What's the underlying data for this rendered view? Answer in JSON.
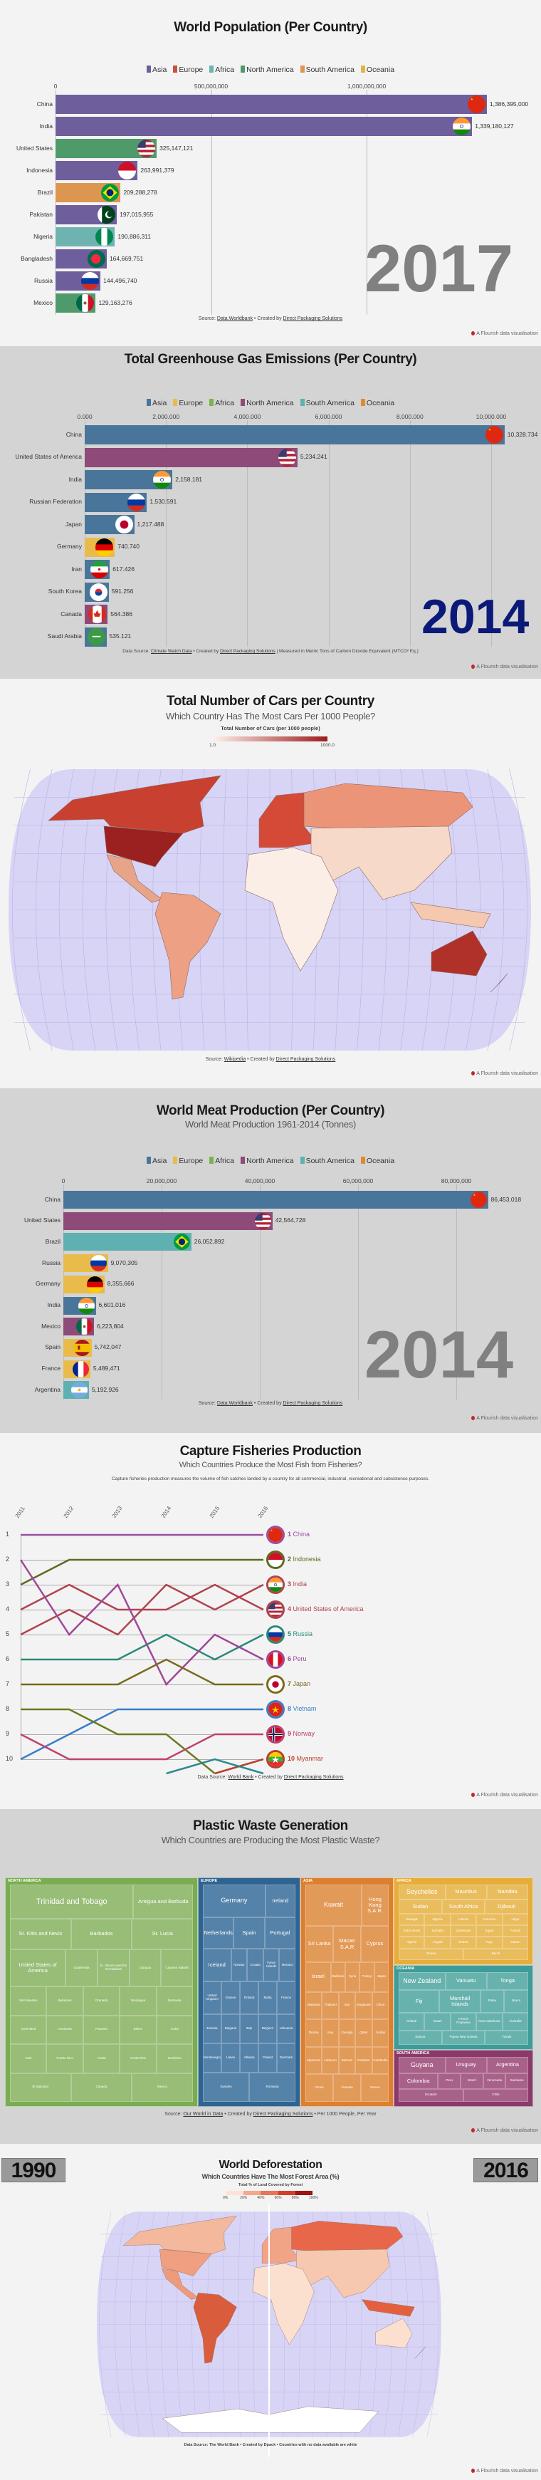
{
  "flourish_label": "A Flourish data visualisation",
  "population": {
    "title": "World Population (Per Country)",
    "year": "2017",
    "legend": [
      {
        "name": "Asia",
        "color": "#6f5e9c"
      },
      {
        "name": "Europe",
        "color": "#c9503e"
      },
      {
        "name": "Africa",
        "color": "#6fb3b0"
      },
      {
        "name": "North America",
        "color": "#4f9a6a"
      },
      {
        "name": "South America",
        "color": "#dc9650"
      },
      {
        "name": "Oceania",
        "color": "#e2b440"
      }
    ],
    "source_prefix": "Source: ",
    "source_link": "Data.Worldbank",
    "created_prefix": " • Created by ",
    "created_link": "Direct Packaging Solutions"
  },
  "greenhouse": {
    "title": "Total Greenhouse Gas Emissions (Per Country)",
    "year": "2014",
    "legend": [
      {
        "name": "Asia",
        "color": "#4a759a"
      },
      {
        "name": "Europe",
        "color": "#e8bb4a"
      },
      {
        "name": "Africa",
        "color": "#7ab250"
      },
      {
        "name": "North America",
        "color": "#8e4a78"
      },
      {
        "name": "South America",
        "color": "#5fb0b0"
      },
      {
        "name": "Oceania",
        "color": "#e08a30"
      }
    ],
    "source_prefix": "Data Source: ",
    "source_link": "Climate Watch Data",
    "created_prefix": " • Created by ",
    "created_link": "Direct Packaging Solutions",
    "note": " | Measured in Metric Tons of Carbon Dioxide Equivalent (MTCO² Eq.)"
  },
  "cars": {
    "title": "Total Number of Cars per Country",
    "subtitle": "Which Country Has The Most Cars Per 1000 People?",
    "legend_title": "Total Number of Cars (per 1000 people)",
    "legend_min": "1.0",
    "legend_max": "1000.0",
    "scale_colors": [
      "#fdf0e8",
      "#9b1c1c"
    ],
    "ocean_color": "#d8d4f6",
    "map_colors": {
      "north_america_north": "#c8402f",
      "united_states": "#9b2020",
      "central_america": "#e8a488",
      "south_america": "#eda084",
      "europe": "#d44a36",
      "russia": "#eb9478",
      "asia": "#f7d9c9",
      "africa": "#fbeee6",
      "southeast_asia_islands": "#f5c8b0",
      "australia": "#b0302a",
      "new_zealand": "#c03030"
    },
    "source_prefix": "Source: ",
    "source_link": "Wikipedia",
    "created_prefix": " • Created by ",
    "created_link": "Direct Packaging Solutions"
  },
  "meat": {
    "title": "World Meat Production (Per Country)",
    "subtitle": "World Meat Production 1961-2014 (Tonnes)",
    "year": "2014",
    "legend": [
      {
        "name": "Asia",
        "color": "#4a759a"
      },
      {
        "name": "Europe",
        "color": "#e8bb4a"
      },
      {
        "name": "Africa",
        "color": "#7ab250"
      },
      {
        "name": "North America",
        "color": "#8e4a78"
      },
      {
        "name": "South America",
        "color": "#5fb0b0"
      },
      {
        "name": "Oceania",
        "color": "#e08a30"
      }
    ],
    "source_prefix": "Source: ",
    "source_link": "Data.Worldbank",
    "created_prefix": " • Created by ",
    "created_link": "Direct Packaging Solutions"
  },
  "fisheries": {
    "title": "Capture Fisheries Production",
    "subtitle": "Which Countries Produce the Most Fish from Fisheries?",
    "description": "Capture fisheries production measures the volume of fish catches landed by a country for all commercial, industrial, recreational and subsistence purposes.",
    "source_prefix": "Data Source: ",
    "source_link": "World Bank",
    "created_prefix": " • Created by ",
    "created_link": "Direct Packaging Solutions"
  },
  "plastic": {
    "title": "Plastic Waste Generation",
    "subtitle": "Which Countries are Producing the Most Plastic Waste?",
    "regions": [
      {
        "name": "NORTH AMERICA",
        "color": "#7aad52",
        "tile": "#97bd76",
        "tiles": [
          "Trinidad and Tobago",
          "Antigua and Barbuda",
          "St. Kitts and Nevis",
          "Barbados",
          "St. Lucia",
          "United States of America",
          "Guatemala",
          "St. Vincent and the Grenadines",
          "Curaçao",
          "Cayman Islands",
          "Sint Maarten",
          "Bahamas",
          "Grenada",
          "Nicaragua",
          "Bermuda",
          "Greenland",
          "Honduras",
          "Panama",
          "Belize",
          "Cuba",
          "Haiti",
          "Puerto Rico",
          "Aruba",
          "Costa Rica",
          "Dominica",
          "El Salvador",
          "Canada",
          "Mexico"
        ]
      },
      {
        "name": "EUROPE",
        "color": "#2f6490",
        "tile": "#5582a8",
        "tiles": [
          "Germany",
          "Ireland",
          "Netherlands",
          "Spain",
          "Portugal",
          "Iceland",
          "Norway",
          "Croatia",
          "Faroe Islands",
          "Monaco",
          "United Kingdom",
          "Greece",
          "Finland",
          "Malta",
          "France",
          "Estonia",
          "Bulgaria",
          "Italy",
          "Belgium",
          "Lithuania",
          "Montenegro",
          "Latvia",
          "Albania",
          "Poland",
          "Denmark",
          "Sweden",
          "Romania"
        ]
      },
      {
        "name": "ASIA",
        "color": "#dc8030",
        "tile": "#e29a58",
        "tiles": [
          "Kuwait",
          "Hong Kong S.A.R.",
          "Sri Lanka",
          "Macao S.A.R",
          "Cyprus",
          "Israel",
          "Maldives",
          "Syria",
          "Turkey",
          "Japan",
          "Malaysia",
          "Thailand",
          "Iran",
          "Singapore",
          "China",
          "Russia",
          "Iraq",
          "Georgia",
          "Qatar",
          "Jordan",
          "Myanmar",
          "Lebanon",
          "Bahrain",
          "Pakistan",
          "Cambodia",
          "Oman",
          "Vietnam",
          "Yemen"
        ]
      },
      {
        "name": "AFRICA",
        "color": "#e6ad3a",
        "tile": "#e9bd5e",
        "tiles": [
          "Seychelles",
          "Mauritius",
          "Namibia",
          "Sudan",
          "South Africa",
          "Djibouti",
          "Senegal",
          "Nigeria",
          "Liberia",
          "Comoros",
          "Libya",
          "Cabo Verde",
          "Somalia",
          "Cameroon",
          "Egypt",
          "Tunisia",
          "Algeria",
          "Angola",
          "Eritrea",
          "Togo",
          "Gabon",
          "Ghana",
          "Benin"
        ]
      },
      {
        "name": "OCEANIA",
        "color": "#3e9c98",
        "tile": "#68b2ae",
        "tiles": [
          "New Zealand",
          "Vanuatu",
          "Tonga",
          "Fiji",
          "Marshall Islands",
          "Palau",
          "Nauru",
          "Kiribati",
          "Guam",
          "French Polynesia",
          "New Caledonia",
          "Australia",
          "Samoa",
          "Papua New Guinea",
          "Tuvalu"
        ]
      },
      {
        "name": "SOUTH AMERICA",
        "color": "#8a3a6a",
        "tile": "#a8628a",
        "tiles": [
          "Guyana",
          "Uruguay",
          "Argentina",
          "Colombia",
          "Peru",
          "Brazil",
          "Venezuela",
          "Suriname",
          "Ecuador",
          "Chile"
        ]
      }
    ],
    "source_prefix": "Source: ",
    "source_link": "Our World in Data",
    "created_prefix": " • Created by ",
    "created_link": "Direct Packaging Solutions",
    "note": " • Per 1000 People, Per Year"
  },
  "deforestation": {
    "title": "World Deforestation",
    "subtitle": "Which Countries Have The Most Forest Area (%)",
    "legend_title": "Total % of Land Covered by Forest",
    "legend_ticks": [
      "0%",
      "20%",
      "40%",
      "60%",
      "80%",
      "100%"
    ],
    "scale_colors": [
      "#fde3d6",
      "#f4a98a",
      "#ea7455",
      "#d23f2c",
      "#9c1414"
    ],
    "year_left": "1990",
    "year_right": "2016",
    "ocean_color": "#d8d4f6",
    "map_colors": {
      "north_america_north": "#f4b89c",
      "united_states": "#f0a080",
      "central_america": "#ee9a7c",
      "south_america": "#d95c3c",
      "europe": "#f2a487",
      "russia": "#e8674a",
      "asia": "#f6c8b0",
      "africa": "#fbe0d0",
      "southeast_asia_islands": "#e3603f",
      "australia": "#fbe0d0",
      "new_zealand": "#f0a080",
      "antarctica": "#ffffff"
    },
    "source": "Data Source: The World Bank • Created by Dpack • Countries with no data available are white"
  },
  "chart_data": [
    {
      "type": "bar",
      "orientation": "horizontal",
      "title": "World Population (Per Country)",
      "year": "2017",
      "xlim": [
        0,
        1400000000
      ],
      "ticks": [
        "0",
        "500,000,000",
        "1,000,000,000"
      ],
      "tick_values": [
        0,
        500000000,
        1000000000
      ],
      "grid": true,
      "legend_position": "top",
      "categories": [
        "China",
        "India",
        "United States",
        "Indonesia",
        "Brazil",
        "Pakistan",
        "Nigeria",
        "Bangladesh",
        "Russia",
        "Mexico"
      ],
      "values": [
        1386395000,
        1339180127,
        325147121,
        263991379,
        209288278,
        197015955,
        190886311,
        164669751,
        144496740,
        129163276
      ],
      "labels": [
        "1,386,395,000",
        "1,339,180,127",
        "325,147,121",
        "263,991,379",
        "209,288,278",
        "197,015,955",
        "190,886,311",
        "164,669,751",
        "144,496,740",
        "129,163,276"
      ],
      "groups": [
        "Asia",
        "Asia",
        "North America",
        "Asia",
        "South America",
        "Asia",
        "Africa",
        "Asia",
        "Asia",
        "North America"
      ],
      "flags": [
        "cn",
        "in",
        "us",
        "id",
        "br",
        "pk",
        "ng",
        "bd",
        "ru",
        "mx"
      ]
    },
    {
      "type": "bar",
      "orientation": "horizontal",
      "title": "Total Greenhouse Gas Emissions (Per Country)",
      "year": "2014",
      "xlim": [
        0,
        10500
      ],
      "ticks": [
        "0.000",
        "2,000.000",
        "4,000.000",
        "6,000.000",
        "8,000.000",
        "10,000.000"
      ],
      "tick_values": [
        0,
        2000,
        4000,
        6000,
        8000,
        10000
      ],
      "grid": true,
      "legend_position": "top",
      "categories": [
        "China",
        "United States of America",
        "India",
        "Russian Federation",
        "Japan",
        "Germany",
        "Iran",
        "South Korea",
        "Canada",
        "Saudi Arabia"
      ],
      "values": [
        10328.734,
        5234.241,
        2158.181,
        1530.591,
        1217.488,
        740.74,
        617.426,
        591.256,
        564.386,
        535.121
      ],
      "labels": [
        "10,328.734",
        "5,234.241",
        "2,158.181",
        "1,530.591",
        "1,217.488",
        "740.740",
        "617.426",
        "591.256",
        "564.386",
        "535.121"
      ],
      "groups": [
        "Asia",
        "North America",
        "Asia",
        "Asia",
        "Asia",
        "Europe",
        "Asia",
        "Asia",
        "North America",
        "Asia"
      ],
      "flags": [
        "cn",
        "us",
        "in",
        "ru",
        "jp",
        "de",
        "ir",
        "kr",
        "ca",
        "sa"
      ]
    },
    {
      "type": "bar",
      "orientation": "horizontal",
      "title": "World Meat Production (Per Country)",
      "year": "2014",
      "xlim": [
        0,
        90000000
      ],
      "ticks": [
        "0",
        "20,000,000",
        "40,000,000",
        "60,000,000",
        "80,000,000"
      ],
      "tick_values": [
        0,
        20000000,
        40000000,
        60000000,
        80000000
      ],
      "grid": true,
      "legend_position": "top",
      "categories": [
        "China",
        "United States",
        "Brazil",
        "Russia",
        "Germany",
        "India",
        "Mexico",
        "Spain",
        "France",
        "Argentina"
      ],
      "values": [
        86453018,
        42564728,
        26052892,
        9070305,
        8355666,
        6601016,
        6223804,
        5742047,
        5489471,
        5192926
      ],
      "labels": [
        "86,453,018",
        "42,564,728",
        "26,052,892",
        "9,070,305",
        "8,355,666",
        "6,601,016",
        "6,223,804",
        "5,742,047",
        "5,489,471",
        "5,192,926"
      ],
      "groups": [
        "Asia",
        "North America",
        "South America",
        "Europe",
        "Europe",
        "Asia",
        "North America",
        "Europe",
        "Europe",
        "South America"
      ],
      "flags": [
        "cn",
        "us",
        "br",
        "ru",
        "de",
        "in",
        "mx",
        "es",
        "fr",
        "ar"
      ]
    },
    {
      "type": "line",
      "subtype": "bump",
      "title": "Capture Fisheries Production",
      "x": [
        "2011",
        "2012",
        "2013",
        "2014",
        "2015",
        "2016"
      ],
      "y_ticks": [
        "1",
        "2",
        "3",
        "4",
        "5",
        "6",
        "7",
        "8",
        "9",
        "10"
      ],
      "series": [
        {
          "name": "China",
          "rank_label": "1",
          "flag": "cn",
          "color": "#9b4fa0",
          "values": [
            1,
            1,
            1,
            1,
            1,
            1
          ]
        },
        {
          "name": "Indonesia",
          "rank_label": "2",
          "flag": "id",
          "color": "#5b6b1f",
          "values": [
            3,
            2,
            2,
            2,
            2,
            2
          ]
        },
        {
          "name": "India",
          "rank_label": "3",
          "flag": "in",
          "color": "#b0434f",
          "values": [
            5,
            4,
            5,
            3,
            4,
            3
          ]
        },
        {
          "name": "United States of America",
          "rank_label": "4",
          "flag": "us",
          "color": "#b0434f",
          "values": [
            4,
            3,
            4,
            4,
            3,
            4
          ]
        },
        {
          "name": "Russia",
          "rank_label": "5",
          "flag": "ru",
          "color": "#2a8a78",
          "values": [
            6,
            6,
            6,
            5,
            6,
            5
          ]
        },
        {
          "name": "Peru",
          "rank_label": "6",
          "flag": "pe",
          "color": "#a0479a",
          "values": [
            2,
            5,
            3,
            7,
            5,
            6
          ]
        },
        {
          "name": "Japan",
          "rank_label": "7",
          "flag": "jp",
          "color": "#7a6a1a",
          "values": [
            7,
            7,
            7,
            6,
            7,
            7
          ]
        },
        {
          "name": "Vietnam",
          "rank_label": "8",
          "flag": "vn",
          "color": "#3a7ec8",
          "values": [
            10,
            9,
            8,
            8,
            8,
            8
          ]
        },
        {
          "name": "Norway",
          "rank_label": "9",
          "flag": "no",
          "color": "#c04070",
          "values": [
            9,
            10,
            10,
            10,
            9,
            9
          ]
        },
        {
          "name": "Myanmar",
          "rank_label": "10",
          "flag": "mm",
          "color": "#b8402a",
          "values": [
            null,
            null,
            null,
            null,
            11,
            10
          ]
        },
        {
          "color": "#6a7a20",
          "values": [
            8,
            8,
            9,
            9,
            11,
            null
          ]
        },
        {
          "color": "#2a8a90",
          "values": [
            null,
            null,
            null,
            11,
            10,
            11
          ]
        }
      ]
    }
  ]
}
